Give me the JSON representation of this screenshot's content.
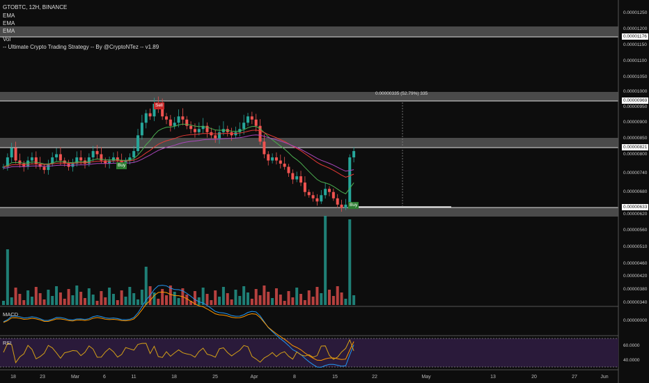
{
  "header": {
    "symbol_line": "GTOBTC, 12H, BINANCE",
    "indicators": [
      "EMA",
      "EMA",
      "EMA",
      "Vol",
      "-- Ultimate Crypto Trading Strategy -- By @CryptoNTez -- v1.89"
    ]
  },
  "price_axis": {
    "labels": [
      "0.00001250",
      "0.00001200",
      "0.00001150",
      "0.00001100",
      "0.00001050",
      "0.00001000",
      "0.00000950",
      "0.00000900",
      "0.00000850",
      "0.00000800",
      "0.00000740",
      "0.00000680",
      "0.00000620",
      "0.00000560",
      "0.00000510",
      "0.00000460",
      "0.00000420",
      "0.00000380",
      "0.00000340"
    ],
    "tags": [
      "0.00001176",
      "0.00000969",
      "0.00000821",
      "0.00000633"
    ]
  },
  "macd": {
    "label": "MACD",
    "axis": [
      "0.00000000"
    ]
  },
  "rsi": {
    "label": "RSI",
    "axis": [
      "60.0000",
      "40.0000"
    ]
  },
  "time_axis": [
    "18",
    "23",
    "Mar",
    "6",
    "11",
    "18",
    "25",
    "Apr",
    "8",
    "15",
    "22",
    "May",
    "13",
    "20",
    "27",
    "Jun"
  ],
  "signals": {
    "sell": "Sell",
    "buy1": "Buy",
    "buy2": "Buy"
  },
  "measure_text": "0.00000335 (52.79%) 335",
  "colors": {
    "up": "#26a69a",
    "down": "#ef5350",
    "ema_green": "#4caf50",
    "ema_red": "#e53935",
    "ema_purple": "#ab47bc",
    "zone": "#4a4a4a"
  },
  "chart_data": {
    "type": "candlestick",
    "symbol": "GTOBTC",
    "interval": "12H",
    "exchange": "BINANCE",
    "levels": [
      1.176e-05,
      9.69e-06,
      8.21e-06,
      6.33e-06
    ],
    "closes_approx": [
      7.6e-06,
      7.9e-06,
      8.2e-06,
      7.8e-06,
      7.7e-06,
      7.6e-06,
      7.8e-06,
      7.9e-06,
      7.7e-06,
      7.6e-06,
      7.5e-06,
      7.7e-06,
      7.9e-06,
      8e-06,
      7.8e-06,
      7.7e-06,
      7.6e-06,
      7.7e-06,
      7.9e-06,
      7.8e-06,
      7.7e-06,
      7.9e-06,
      8.1e-06,
      8e-06,
      7.8e-06,
      7.7e-06,
      7.8e-06,
      7.9e-06,
      7.8e-06,
      7.7e-06,
      7.8e-06,
      7.9e-06,
      8.1e-06,
      8.6e-06,
      9e-06,
      9.3e-06,
      9.2e-06,
      9.6e-06,
      9.5e-06,
      9.2e-06,
      9.1e-06,
      8.9e-06,
      9e-06,
      9.2e-06,
      9.1e-06,
      8.9e-06,
      8.8e-06,
      8.7e-06,
      8.8e-06,
      8.9e-06,
      8.7e-06,
      8.6e-06,
      8.5e-06,
      8.7e-06,
      8.8e-06,
      8.7e-06,
      8.6e-06,
      8.7e-06,
      8.8e-06,
      9e-06,
      9.2e-06,
      9.1e-06,
      8.9e-06,
      8.4e-06,
      8e-06,
      7.8e-06,
      7.9e-06,
      7.8e-06,
      7.7e-06,
      7.6e-06,
      7.4e-06,
      7.2e-06,
      7.3e-06,
      7.1e-06,
      6.8e-06,
      6.7e-06,
      6.6e-06,
      6.5e-06,
      6.7e-06,
      6.9e-06,
      6.8e-06,
      6.6e-06,
      6.4e-06,
      6.3e-06,
      6.4e-06,
      7.9e-06,
      8.1e-06
    ]
  }
}
